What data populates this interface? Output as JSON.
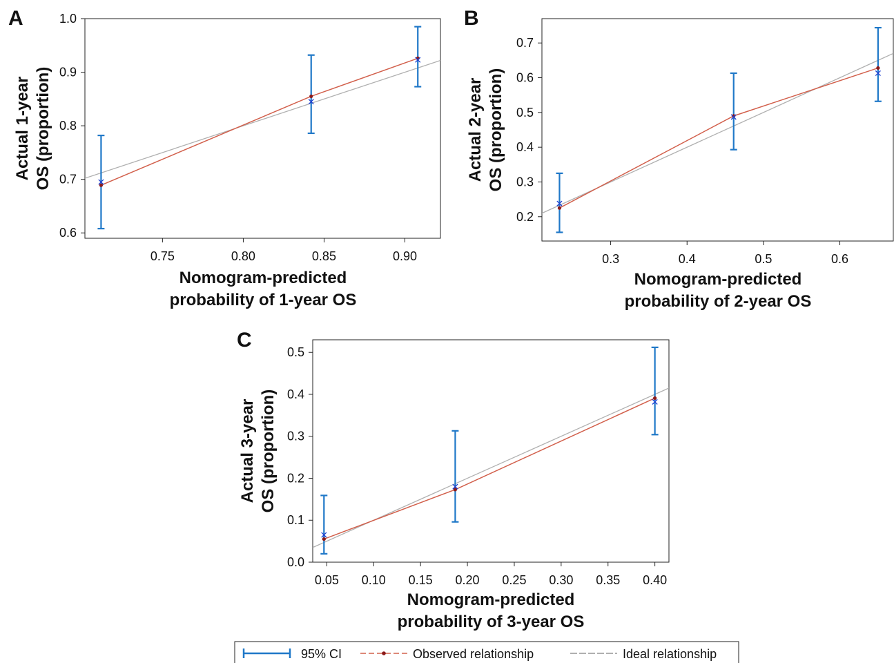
{
  "colors": {
    "ci": "#1f78c8",
    "observed": "#d2604c",
    "observed_marker": "#8b1a1a",
    "ideal": "#b0b0b0",
    "bootstrap_marker": "#1f3fd0",
    "axis": "#222222"
  },
  "legend": {
    "ci_label": "95% CI",
    "observed_label": "Observed relationship",
    "ideal_label": "Ideal relationship"
  },
  "chart_data": [
    {
      "type": "line",
      "panel": "A",
      "xlabel": [
        "Nomogram-predicted",
        "probability of 1-year OS"
      ],
      "ylabel": [
        "Actual 1-year",
        "OS (proportion)"
      ],
      "xlim": [
        0.702,
        0.922
      ],
      "ylim": [
        0.59,
        1.0
      ],
      "xticks": [
        0.75,
        0.8,
        0.85,
        0.9
      ],
      "xtick_labels": [
        "0.75",
        "0.80",
        "0.85",
        "0.90"
      ],
      "yticks": [
        0.6,
        0.7,
        0.8,
        0.9,
        1.0
      ],
      "ytick_labels": [
        "0.6",
        "0.7",
        "0.8",
        "0.9",
        "1.0"
      ],
      "series": [
        {
          "name": "Observed relationship",
          "x": [
            0.712,
            0.842,
            0.908
          ],
          "y": [
            0.689,
            0.855,
            0.926
          ]
        },
        {
          "name": "Ideal relationship",
          "x": [
            0.702,
            0.922
          ],
          "y": [
            0.702,
            0.922
          ]
        }
      ],
      "bootstrap_corrected": {
        "x": [
          0.712,
          0.842,
          0.908
        ],
        "y": [
          0.695,
          0.845,
          0.923
        ]
      },
      "ci": [
        {
          "x": 0.712,
          "low": 0.608,
          "high": 0.782
        },
        {
          "x": 0.842,
          "low": 0.786,
          "high": 0.932
        },
        {
          "x": 0.908,
          "low": 0.873,
          "high": 0.985
        }
      ]
    },
    {
      "type": "line",
      "panel": "B",
      "xlabel": [
        "Nomogram-predicted",
        "probability of 2-year OS"
      ],
      "ylabel": [
        "Actual 2-year",
        "OS (proportion)"
      ],
      "xlim": [
        0.21,
        0.67
      ],
      "ylim": [
        0.13,
        0.77
      ],
      "xticks": [
        0.3,
        0.4,
        0.5,
        0.6
      ],
      "xtick_labels": [
        "0.3",
        "0.4",
        "0.5",
        "0.6"
      ],
      "yticks": [
        0.2,
        0.3,
        0.4,
        0.5,
        0.6,
        0.7
      ],
      "ytick_labels": [
        "0.2",
        "0.3",
        "0.4",
        "0.5",
        "0.6",
        "0.7"
      ],
      "series": [
        {
          "name": "Observed relationship",
          "x": [
            0.233,
            0.461,
            0.65
          ],
          "y": [
            0.225,
            0.49,
            0.628
          ]
        },
        {
          "name": "Ideal relationship",
          "x": [
            0.21,
            0.67
          ],
          "y": [
            0.21,
            0.67
          ]
        }
      ],
      "bootstrap_corrected": {
        "x": [
          0.233,
          0.461,
          0.65
        ],
        "y": [
          0.238,
          0.487,
          0.613
        ]
      },
      "ci": [
        {
          "x": 0.233,
          "low": 0.155,
          "high": 0.325
        },
        {
          "x": 0.461,
          "low": 0.393,
          "high": 0.613
        },
        {
          "x": 0.65,
          "low": 0.532,
          "high": 0.744
        }
      ]
    },
    {
      "type": "line",
      "panel": "C",
      "xlabel": [
        "Nomogram-predicted",
        "probability of 3-year OS"
      ],
      "ylabel": [
        "Actual 3-year",
        "OS (proportion)"
      ],
      "xlim": [
        0.035,
        0.415
      ],
      "ylim": [
        0.0,
        0.53
      ],
      "xticks": [
        0.05,
        0.1,
        0.15,
        0.2,
        0.25,
        0.3,
        0.35,
        0.4
      ],
      "xtick_labels": [
        "0.05",
        "0.10",
        "0.15",
        "0.20",
        "0.25",
        "0.30",
        "0.35",
        "0.40"
      ],
      "yticks": [
        0.0,
        0.1,
        0.2,
        0.3,
        0.4,
        0.5
      ],
      "ytick_labels": [
        "0.0",
        "0.1",
        "0.2",
        "0.3",
        "0.4",
        "0.5"
      ],
      "series": [
        {
          "name": "Observed relationship",
          "x": [
            0.047,
            0.187,
            0.4
          ],
          "y": [
            0.055,
            0.173,
            0.391
          ]
        },
        {
          "name": "Ideal relationship",
          "x": [
            0.035,
            0.415
          ],
          "y": [
            0.035,
            0.415
          ]
        }
      ],
      "bootstrap_corrected": {
        "x": [
          0.047,
          0.187,
          0.4
        ],
        "y": [
          0.065,
          0.18,
          0.382
        ]
      },
      "ci": [
        {
          "x": 0.047,
          "low": 0.02,
          "high": 0.159
        },
        {
          "x": 0.187,
          "low": 0.096,
          "high": 0.313
        },
        {
          "x": 0.4,
          "low": 0.304,
          "high": 0.512
        }
      ]
    }
  ]
}
